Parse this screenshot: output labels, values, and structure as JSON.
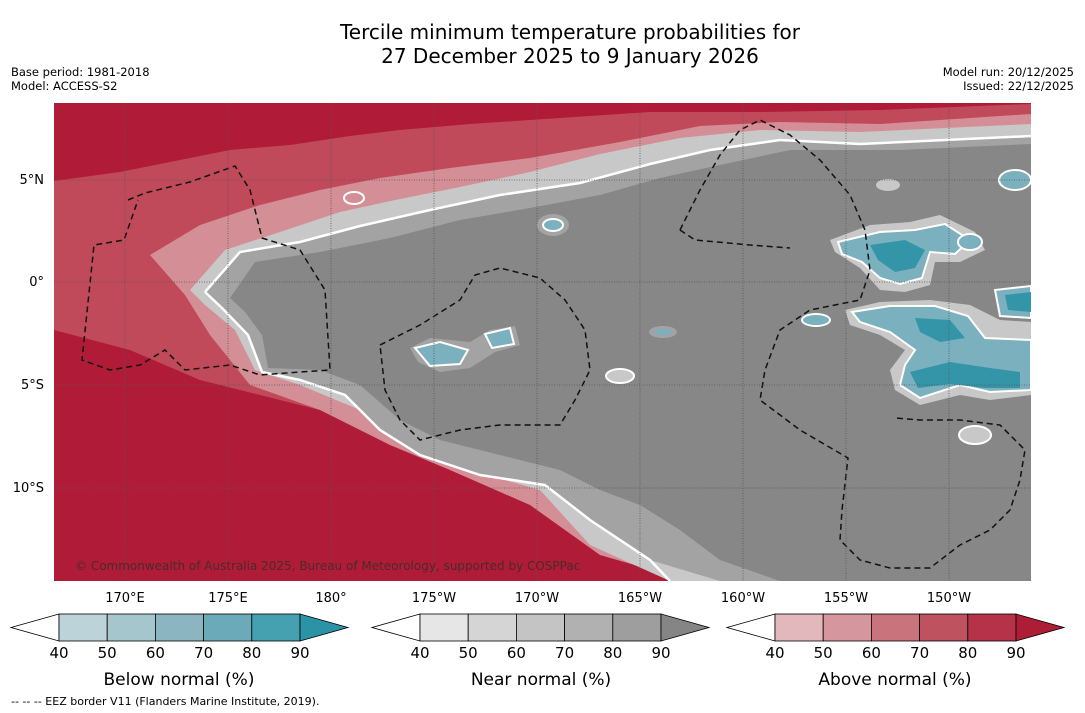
{
  "title": {
    "line1": "Tercile minimum temperature probabilities for",
    "line2": "27 December 2025 to 9 January 2026"
  },
  "meta_left": {
    "base_period": "Base period: 1981-2018",
    "model": "Model: ACCESS-S2"
  },
  "meta_right": {
    "model_run": "Model run: 20/12/2025",
    "issued": "Issued: 22/12/2025"
  },
  "map": {
    "lat_labels": [
      "5°N",
      "0°",
      "5°S",
      "10°S"
    ],
    "lon_labels": [
      "170°E",
      "175°E",
      "180°",
      "175°W",
      "170°W",
      "165°W",
      "160°W",
      "155°W",
      "150°W"
    ],
    "copyright": "© Commonwealth of Australia 2025, Bureau of Meteorology, supported by COSPPac"
  },
  "colorbars": [
    {
      "label": "Below normal (%)",
      "ticks": [
        "40",
        "50",
        "60",
        "70",
        "80",
        "90"
      ],
      "colors": [
        "#bdd3da",
        "#a6c6ce",
        "#8bb5c1",
        "#6baab8",
        "#45a0b0",
        "#2b93a6"
      ]
    },
    {
      "label": "Near normal (%)",
      "ticks": [
        "40",
        "50",
        "60",
        "70",
        "80",
        "90"
      ],
      "colors": [
        "#e6e6e6",
        "#d5d5d5",
        "#c4c4c4",
        "#b1b1b1",
        "#9e9e9e",
        "#858585"
      ]
    },
    {
      "label": "Above normal (%)",
      "ticks": [
        "40",
        "50",
        "60",
        "70",
        "80",
        "90"
      ],
      "colors": [
        "#e3b8bd",
        "#d5969d",
        "#c9737d",
        "#bf525f",
        "#b63249",
        "#ad1d36"
      ]
    }
  ],
  "footnote": "-- -- -- EEZ border V11 (Flanders Marine Institute, 2019).",
  "colors": {
    "above_high": "#b01c38",
    "above_mid": "#c04a5a",
    "above_low": "#d48e96",
    "near_high": "#878787",
    "near_mid": "#a3a3a3",
    "near_low": "#c8c8c8",
    "below_mid": "#7bb1be",
    "below_high": "#3595a8"
  }
}
